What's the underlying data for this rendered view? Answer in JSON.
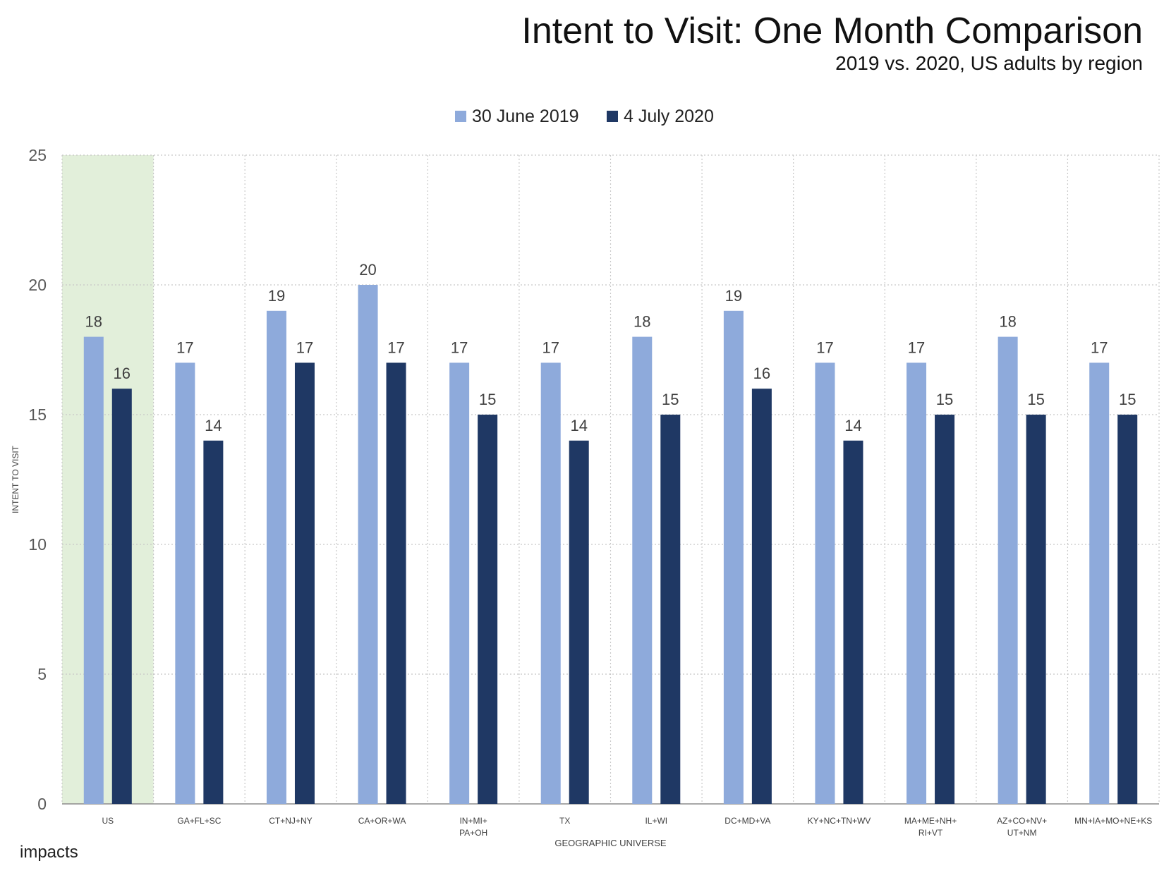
{
  "chart_data": {
    "type": "bar",
    "title": "Intent to Visit: One Month Comparison",
    "subtitle": "2019 vs. 2020, US adults by region",
    "xlabel": "GEOGRAPHIC UNIVERSE",
    "ylabel": "INTENT TO VISIT",
    "ylim": [
      0,
      25
    ],
    "yticks": [
      "0",
      "5",
      "10",
      "15",
      "20",
      "25"
    ],
    "grid": true,
    "legend_position": "top-center",
    "categories": [
      [
        "US"
      ],
      [
        "GA+FL+SC"
      ],
      [
        "CT+NJ+NY"
      ],
      [
        "CA+OR+WA"
      ],
      [
        "IN+MI+",
        "PA+OH"
      ],
      [
        "TX"
      ],
      [
        "IL+WI"
      ],
      [
        "DC+MD+VA"
      ],
      [
        "KY+NC+TN+WV"
      ],
      [
        "MA+ME+NH+",
        "RI+VT"
      ],
      [
        "AZ+CO+NV+",
        "UT+NM"
      ],
      [
        "MN+IA+MO+NE+KS"
      ]
    ],
    "highlight_category": "US",
    "highlight_color": "#e2efda",
    "series": [
      {
        "name": "30 June 2019",
        "color": "#8eaadb",
        "values": [
          18,
          17,
          19,
          20,
          17,
          17,
          18,
          19,
          17,
          17,
          18,
          17
        ]
      },
      {
        "name": "4 July 2020",
        "color": "#1f3864",
        "values": [
          16,
          14,
          17,
          17,
          15,
          14,
          15,
          16,
          14,
          15,
          15,
          15
        ]
      }
    ]
  },
  "branding": {
    "logo_text": "impacts"
  }
}
